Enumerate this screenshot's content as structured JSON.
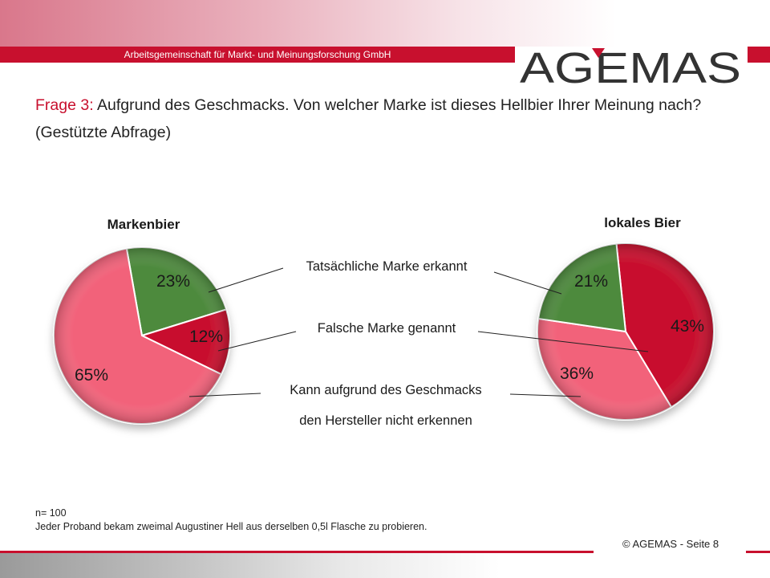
{
  "header": {
    "company": "Arbeitsgemeinschaft für Markt- und Meinungsforschung GmbH",
    "logo_text": "AGEMAS"
  },
  "question": {
    "label": "Frage 3:",
    "text": " Aufgrund des Geschmacks. Von welcher Marke ist dieses Hellbier Ihrer Meinung nach? (Gestützte Abfrage)"
  },
  "chart_data": [
    {
      "type": "pie",
      "title": "Markenbier",
      "slices": [
        {
          "label": "Tatsächliche Marke erkannt",
          "value": 23,
          "display": "23%",
          "color": "#4e8a3e"
        },
        {
          "label": "Falsche Marke genannt",
          "value": 12,
          "display": "12%",
          "color": "#c8102e"
        },
        {
          "label": "Kann aufgrund des Geschmacks den Hersteller nicht erkennen",
          "value": 65,
          "display": "65%",
          "color": "#f2627a"
        }
      ]
    },
    {
      "type": "pie",
      "title": "lokales Bier",
      "slices": [
        {
          "label": "Tatsächliche Marke erkannt",
          "value": 21,
          "display": "21%",
          "color": "#4e8a3e"
        },
        {
          "label": "Falsche Marke genannt",
          "value": 43,
          "display": "43%",
          "color": "#c8102e"
        },
        {
          "label": "Kann aufgrund des Geschmacks den Hersteller nicht erkennen",
          "value": 36,
          "display": "36%",
          "color": "#f2627a"
        }
      ]
    }
  ],
  "legend": {
    "actual": "Tatsächliche Marke erkannt",
    "wrong": "Falsche Marke genannt",
    "unknown_line1": "Kann aufgrund des Geschmacks",
    "unknown_line2": "den Hersteller nicht erkennen"
  },
  "note": {
    "sample": "n= 100",
    "text": "Jeder Proband bekam zweimal Augustiner Hell aus derselben 0,5l Flasche zu probieren."
  },
  "footer": {
    "text": "© AGEMAS - Seite 8"
  },
  "colors": {
    "accent": "#c8102e",
    "green": "#4e8a3e",
    "pink": "#f2627a"
  }
}
